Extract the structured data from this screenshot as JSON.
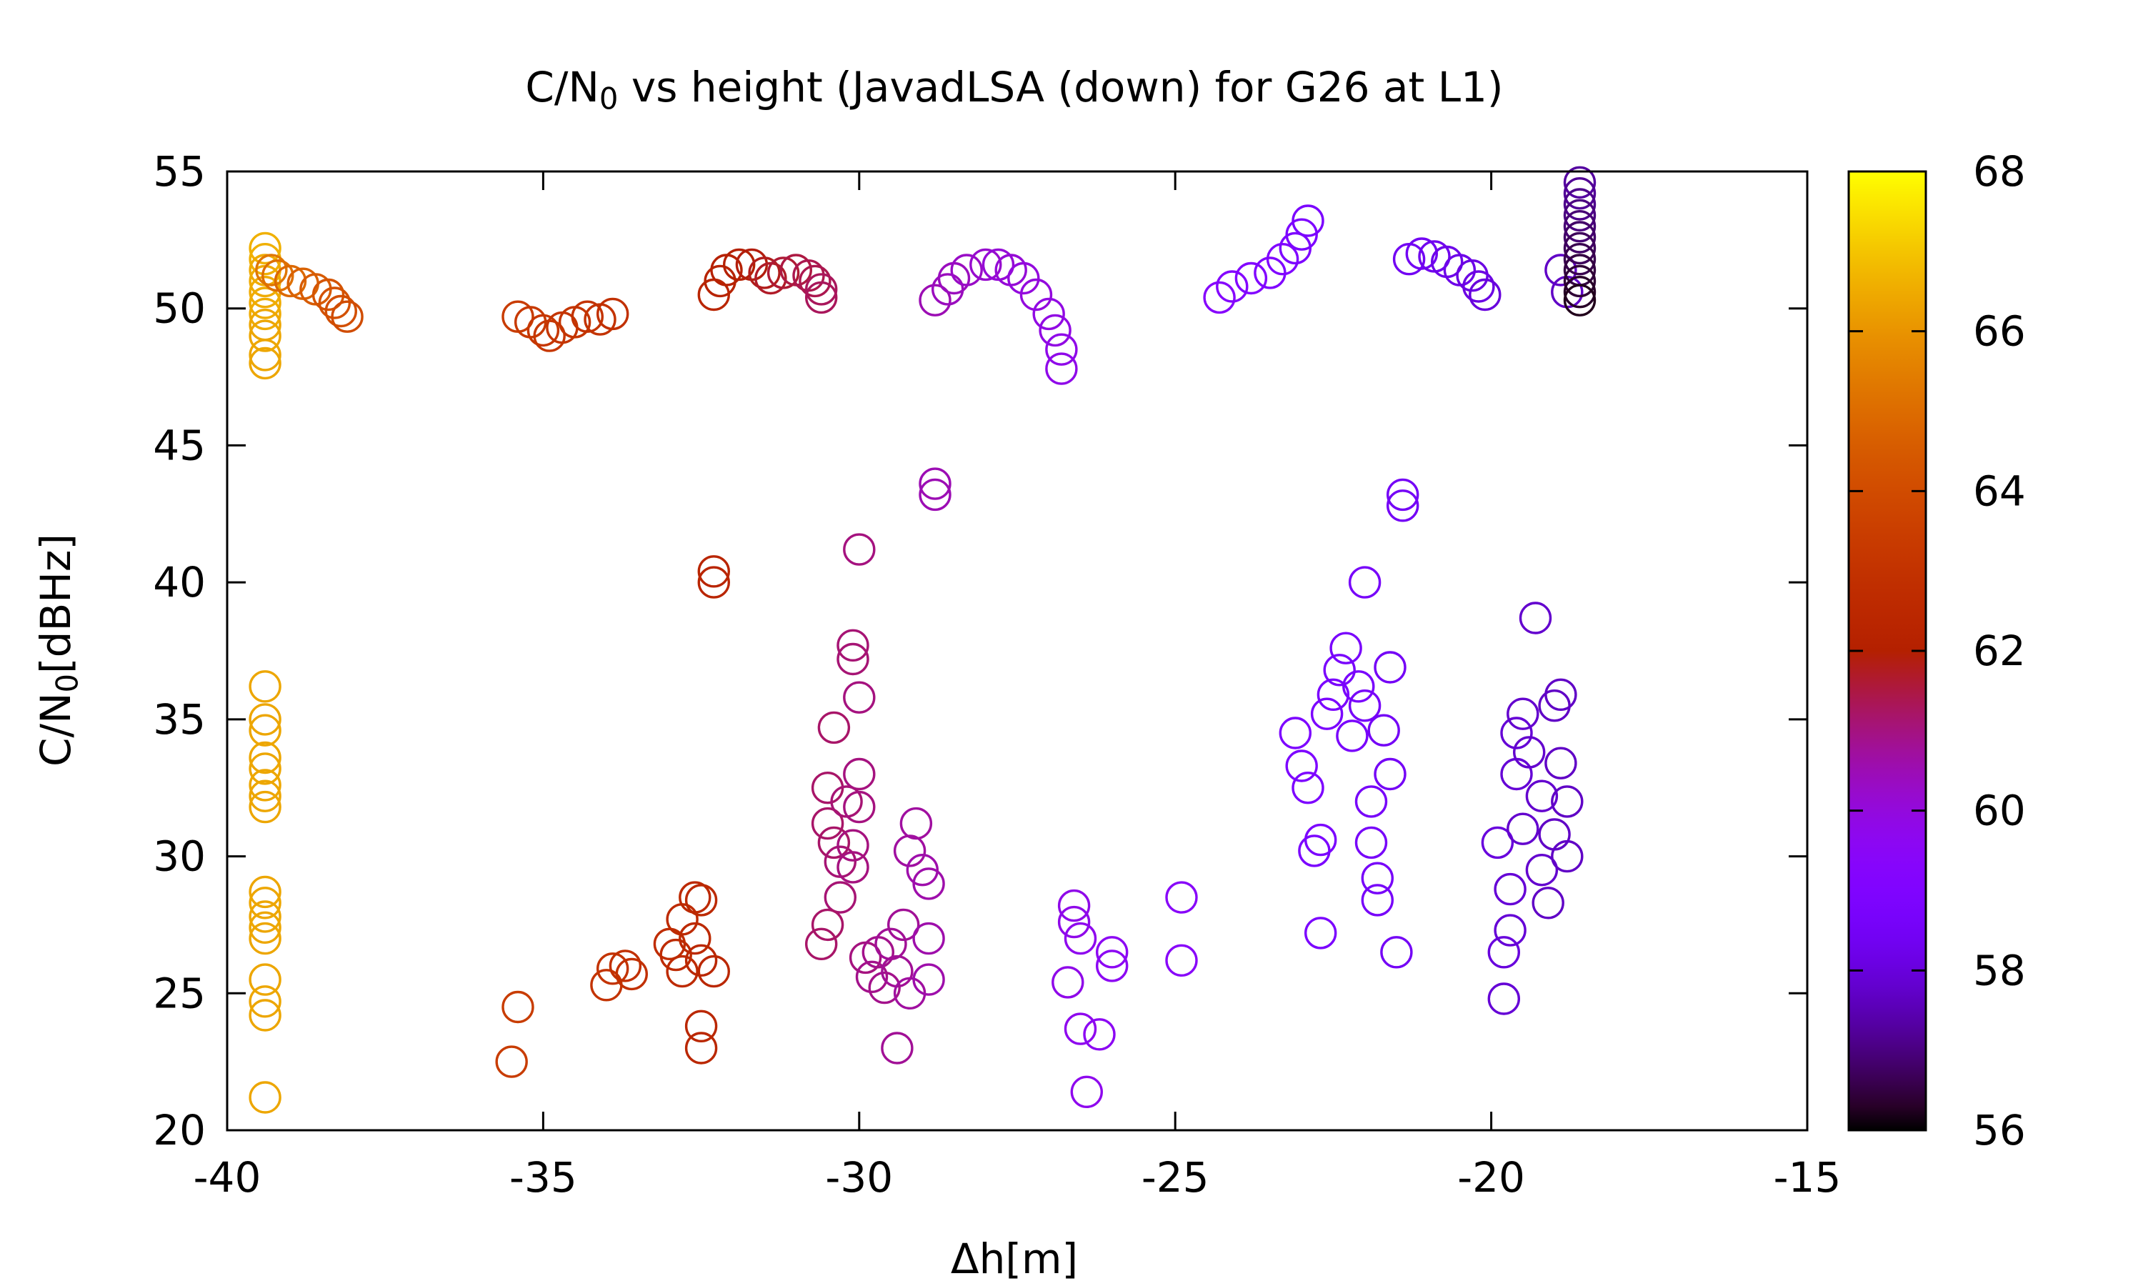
{
  "chart_data": {
    "type": "scatter",
    "title": {
      "prefix": "C/N",
      "sub": "0",
      "suffix": " vs height (JavadLSA (down) for G26 at L1)"
    },
    "xlabel": "Δh[m]",
    "ylabel": {
      "prefix": "C/N",
      "sub": "0",
      "suffix": "[dBHz]"
    },
    "xlim": [
      -40,
      -15
    ],
    "ylim": [
      20,
      55
    ],
    "xticks": [
      -40,
      -35,
      -30,
      -25,
      -20,
      -15
    ],
    "yticks": [
      20,
      25,
      30,
      35,
      40,
      45,
      50,
      55
    ],
    "colorbar": {
      "range": [
        56,
        68
      ],
      "ticks": [
        56,
        58,
        60,
        62,
        64,
        66,
        68
      ],
      "palette": "gnuplot"
    },
    "grid": false,
    "marker": "open-circle",
    "points": [
      [
        -39.4,
        52.2,
        66.6
      ],
      [
        -39.4,
        51.8,
        66.6
      ],
      [
        -39.4,
        51.4,
        66.5
      ],
      [
        -39.4,
        51.0,
        66.5
      ],
      [
        -39.4,
        50.6,
        66.5
      ],
      [
        -39.4,
        50.2,
        66.5
      ],
      [
        -39.4,
        49.8,
        66.5
      ],
      [
        -39.4,
        49.4,
        66.4
      ],
      [
        -39.4,
        49.0,
        66.4
      ],
      [
        -39.4,
        48.3,
        66.4
      ],
      [
        -39.4,
        48.0,
        66.4
      ],
      [
        -39.3,
        51.4,
        65.3
      ],
      [
        -39.2,
        51.2,
        65.1
      ],
      [
        -39.0,
        51.0,
        64.9
      ],
      [
        -38.8,
        50.9,
        64.7
      ],
      [
        -38.6,
        50.7,
        64.5
      ],
      [
        -38.4,
        50.5,
        64.3
      ],
      [
        -38.3,
        50.2,
        64.2
      ],
      [
        -38.2,
        49.9,
        64.1
      ],
      [
        -38.1,
        49.7,
        64.0
      ],
      [
        -39.4,
        36.2,
        66.4
      ],
      [
        -39.4,
        35.0,
        66.4
      ],
      [
        -39.4,
        34.6,
        66.4
      ],
      [
        -39.4,
        33.6,
        66.4
      ],
      [
        -39.4,
        33.2,
        66.4
      ],
      [
        -39.4,
        32.6,
        66.4
      ],
      [
        -39.4,
        32.2,
        66.4
      ],
      [
        -39.4,
        31.8,
        66.4
      ],
      [
        -39.4,
        28.7,
        66.4
      ],
      [
        -39.4,
        28.3,
        66.4
      ],
      [
        -39.4,
        27.8,
        66.4
      ],
      [
        -39.4,
        27.4,
        66.4
      ],
      [
        -39.4,
        27.0,
        66.4
      ],
      [
        -39.4,
        25.5,
        66.4
      ],
      [
        -39.4,
        24.7,
        66.4
      ],
      [
        -39.4,
        24.2,
        66.4
      ],
      [
        -39.4,
        21.2,
        66.4
      ],
      [
        -35.4,
        49.7,
        63.4
      ],
      [
        -35.2,
        49.5,
        63.3
      ],
      [
        -35.0,
        49.2,
        63.2
      ],
      [
        -34.9,
        49.0,
        63.2
      ],
      [
        -34.7,
        49.3,
        63.1
      ],
      [
        -34.5,
        49.5,
        63.1
      ],
      [
        -34.3,
        49.7,
        63.0
      ],
      [
        -34.1,
        49.6,
        63.0
      ],
      [
        -33.9,
        49.8,
        62.9
      ],
      [
        -35.4,
        24.5,
        63.4
      ],
      [
        -35.5,
        22.5,
        63.4
      ],
      [
        -34.0,
        25.3,
        63.0
      ],
      [
        -33.9,
        25.9,
        63.0
      ],
      [
        -33.7,
        26.0,
        62.9
      ],
      [
        -33.6,
        25.7,
        62.9
      ],
      [
        -33.0,
        26.8,
        62.7
      ],
      [
        -32.9,
        26.4,
        62.6
      ],
      [
        -32.8,
        27.7,
        62.6
      ],
      [
        -32.8,
        25.8,
        62.6
      ],
      [
        -32.6,
        28.5,
        62.5
      ],
      [
        -32.6,
        27.0,
        62.5
      ],
      [
        -32.5,
        28.4,
        62.5
      ],
      [
        -32.5,
        26.2,
        62.4
      ],
      [
        -32.5,
        23.8,
        62.4
      ],
      [
        -32.5,
        23.0,
        62.4
      ],
      [
        -32.3,
        25.8,
        62.4
      ],
      [
        -32.3,
        40.4,
        62.3
      ],
      [
        -32.3,
        40.0,
        62.3
      ],
      [
        -32.3,
        50.5,
        62.3
      ],
      [
        -32.2,
        51.0,
        62.2
      ],
      [
        -32.1,
        51.4,
        62.1
      ],
      [
        -31.9,
        51.6,
        62.0
      ],
      [
        -31.7,
        51.6,
        61.9
      ],
      [
        -31.5,
        51.3,
        61.8
      ],
      [
        -31.4,
        51.1,
        61.7
      ],
      [
        -31.2,
        51.3,
        61.6
      ],
      [
        -31.0,
        51.4,
        61.5
      ],
      [
        -30.8,
        51.2,
        61.4
      ],
      [
        -30.7,
        51.0,
        61.4
      ],
      [
        -30.6,
        50.7,
        61.3
      ],
      [
        -30.6,
        50.4,
        61.3
      ],
      [
        -30.4,
        34.7,
        61.2
      ],
      [
        -30.5,
        32.5,
        61.2
      ],
      [
        -30.5,
        31.2,
        61.2
      ],
      [
        -30.4,
        30.5,
        61.2
      ],
      [
        -30.3,
        29.8,
        61.1
      ],
      [
        -30.3,
        28.5,
        61.1
      ],
      [
        -30.2,
        32.0,
        61.1
      ],
      [
        -30.1,
        37.7,
        61.1
      ],
      [
        -30.1,
        37.2,
        61.1
      ],
      [
        -30.0,
        35.8,
        61.0
      ],
      [
        -30.0,
        41.2,
        61.0
      ],
      [
        -30.0,
        33.0,
        61.0
      ],
      [
        -30.0,
        31.8,
        61.0
      ],
      [
        -30.1,
        30.4,
        61.0
      ],
      [
        -30.1,
        29.6,
        61.0
      ],
      [
        -30.5,
        27.5,
        61.2
      ],
      [
        -30.6,
        26.8,
        61.2
      ],
      [
        -29.9,
        26.3,
        61.0
      ],
      [
        -29.8,
        25.6,
        60.9
      ],
      [
        -29.7,
        26.5,
        60.9
      ],
      [
        -29.6,
        25.2,
        60.9
      ],
      [
        -29.5,
        26.8,
        60.8
      ],
      [
        -29.4,
        25.8,
        60.8
      ],
      [
        -29.3,
        27.5,
        60.8
      ],
      [
        -29.2,
        25.0,
        60.7
      ],
      [
        -29.2,
        30.2,
        60.7
      ],
      [
        -29.1,
        31.2,
        60.7
      ],
      [
        -29.0,
        29.5,
        60.6
      ],
      [
        -28.9,
        29.0,
        60.6
      ],
      [
        -28.9,
        27.0,
        60.6
      ],
      [
        -28.9,
        25.5,
        60.6
      ],
      [
        -29.4,
        23.0,
        60.8
      ],
      [
        -28.8,
        43.6,
        60.5
      ],
      [
        -28.8,
        43.2,
        60.5
      ],
      [
        -28.8,
        50.3,
        60.5
      ],
      [
        -28.6,
        50.7,
        60.4
      ],
      [
        -28.5,
        51.1,
        60.4
      ],
      [
        -28.3,
        51.4,
        60.3
      ],
      [
        -28.0,
        51.6,
        60.2
      ],
      [
        -27.8,
        51.6,
        60.1
      ],
      [
        -27.6,
        51.4,
        60.1
      ],
      [
        -27.4,
        51.1,
        60.0
      ],
      [
        -27.2,
        50.5,
        60.0
      ],
      [
        -27.0,
        49.8,
        59.9
      ],
      [
        -26.9,
        49.2,
        59.9
      ],
      [
        -26.8,
        48.5,
        59.8
      ],
      [
        -26.8,
        47.8,
        59.8
      ],
      [
        -26.6,
        28.2,
        59.8
      ],
      [
        -26.6,
        27.6,
        59.8
      ],
      [
        -26.5,
        27.0,
        59.7
      ],
      [
        -26.7,
        25.4,
        59.8
      ],
      [
        -26.5,
        23.7,
        59.7
      ],
      [
        -26.2,
        23.5,
        59.6
      ],
      [
        -26.4,
        21.4,
        59.7
      ],
      [
        -26.0,
        26.5,
        59.6
      ],
      [
        -26.0,
        26.0,
        59.6
      ],
      [
        -24.9,
        28.5,
        59.4
      ],
      [
        -24.9,
        26.2,
        59.4
      ],
      [
        -24.3,
        50.4,
        59.3
      ],
      [
        -24.1,
        50.8,
        59.2
      ],
      [
        -23.8,
        51.1,
        59.1
      ],
      [
        -23.5,
        51.3,
        59.0
      ],
      [
        -23.3,
        51.8,
        59.0
      ],
      [
        -23.1,
        52.2,
        58.9
      ],
      [
        -23.0,
        52.7,
        58.9
      ],
      [
        -22.9,
        53.2,
        58.8
      ],
      [
        -23.1,
        34.5,
        58.9
      ],
      [
        -23.0,
        33.3,
        58.9
      ],
      [
        -22.9,
        32.5,
        58.9
      ],
      [
        -22.8,
        30.2,
        58.8
      ],
      [
        -22.7,
        30.6,
        58.8
      ],
      [
        -22.7,
        27.2,
        58.8
      ],
      [
        -22.6,
        35.2,
        58.8
      ],
      [
        -22.5,
        35.9,
        58.8
      ],
      [
        -22.4,
        36.8,
        58.7
      ],
      [
        -22.3,
        37.6,
        58.7
      ],
      [
        -22.2,
        34.4,
        58.7
      ],
      [
        -22.1,
        36.2,
        58.7
      ],
      [
        -22.0,
        35.5,
        58.6
      ],
      [
        -22.0,
        40.0,
        58.6
      ],
      [
        -21.9,
        30.5,
        58.6
      ],
      [
        -21.9,
        32.0,
        58.6
      ],
      [
        -21.8,
        29.2,
        58.6
      ],
      [
        -21.8,
        28.4,
        58.6
      ],
      [
        -21.7,
        34.6,
        58.5
      ],
      [
        -21.6,
        36.9,
        58.5
      ],
      [
        -21.6,
        33.0,
        58.5
      ],
      [
        -21.5,
        26.5,
        58.5
      ],
      [
        -21.4,
        43.2,
        58.5
      ],
      [
        -21.4,
        42.8,
        58.5
      ],
      [
        -21.3,
        51.8,
        58.4
      ],
      [
        -21.1,
        52.0,
        58.4
      ],
      [
        -20.9,
        51.9,
        58.3
      ],
      [
        -20.7,
        51.7,
        58.2
      ],
      [
        -20.5,
        51.4,
        58.2
      ],
      [
        -20.3,
        51.2,
        58.1
      ],
      [
        -20.2,
        50.8,
        58.1
      ],
      [
        -20.1,
        50.5,
        58.0
      ],
      [
        -19.9,
        30.5,
        58.0
      ],
      [
        -19.8,
        26.5,
        58.0
      ],
      [
        -19.8,
        24.8,
        57.9
      ],
      [
        -19.7,
        28.8,
        57.9
      ],
      [
        -19.7,
        27.3,
        57.9
      ],
      [
        -19.6,
        33.0,
        57.9
      ],
      [
        -19.6,
        34.5,
        57.9
      ],
      [
        -19.5,
        35.2,
        57.8
      ],
      [
        -19.5,
        31.0,
        57.8
      ],
      [
        -19.4,
        33.8,
        57.8
      ],
      [
        -19.3,
        38.7,
        57.8
      ],
      [
        -19.2,
        32.2,
        57.8
      ],
      [
        -19.2,
        29.5,
        57.8
      ],
      [
        -19.1,
        28.3,
        57.7
      ],
      [
        -19.0,
        35.5,
        57.7
      ],
      [
        -19.0,
        30.8,
        57.7
      ],
      [
        -18.9,
        33.4,
        57.7
      ],
      [
        -18.9,
        35.9,
        57.7
      ],
      [
        -18.8,
        32.0,
        57.7
      ],
      [
        -18.8,
        30.0,
        57.7
      ],
      [
        -18.9,
        51.4,
        57.7
      ],
      [
        -18.8,
        50.6,
        57.7
      ],
      [
        -18.6,
        54.6,
        57.3
      ],
      [
        -18.6,
        54.2,
        57.2
      ],
      [
        -18.6,
        53.8,
        57.1
      ],
      [
        -18.6,
        53.4,
        57.0
      ],
      [
        -18.6,
        53.0,
        56.9
      ],
      [
        -18.6,
        52.6,
        56.8
      ],
      [
        -18.6,
        52.2,
        56.7
      ],
      [
        -18.6,
        51.8,
        56.6
      ],
      [
        -18.6,
        51.4,
        56.5
      ],
      [
        -18.6,
        51.0,
        56.4
      ],
      [
        -18.6,
        50.6,
        56.3
      ],
      [
        -18.6,
        50.3,
        56.2
      ]
    ]
  }
}
